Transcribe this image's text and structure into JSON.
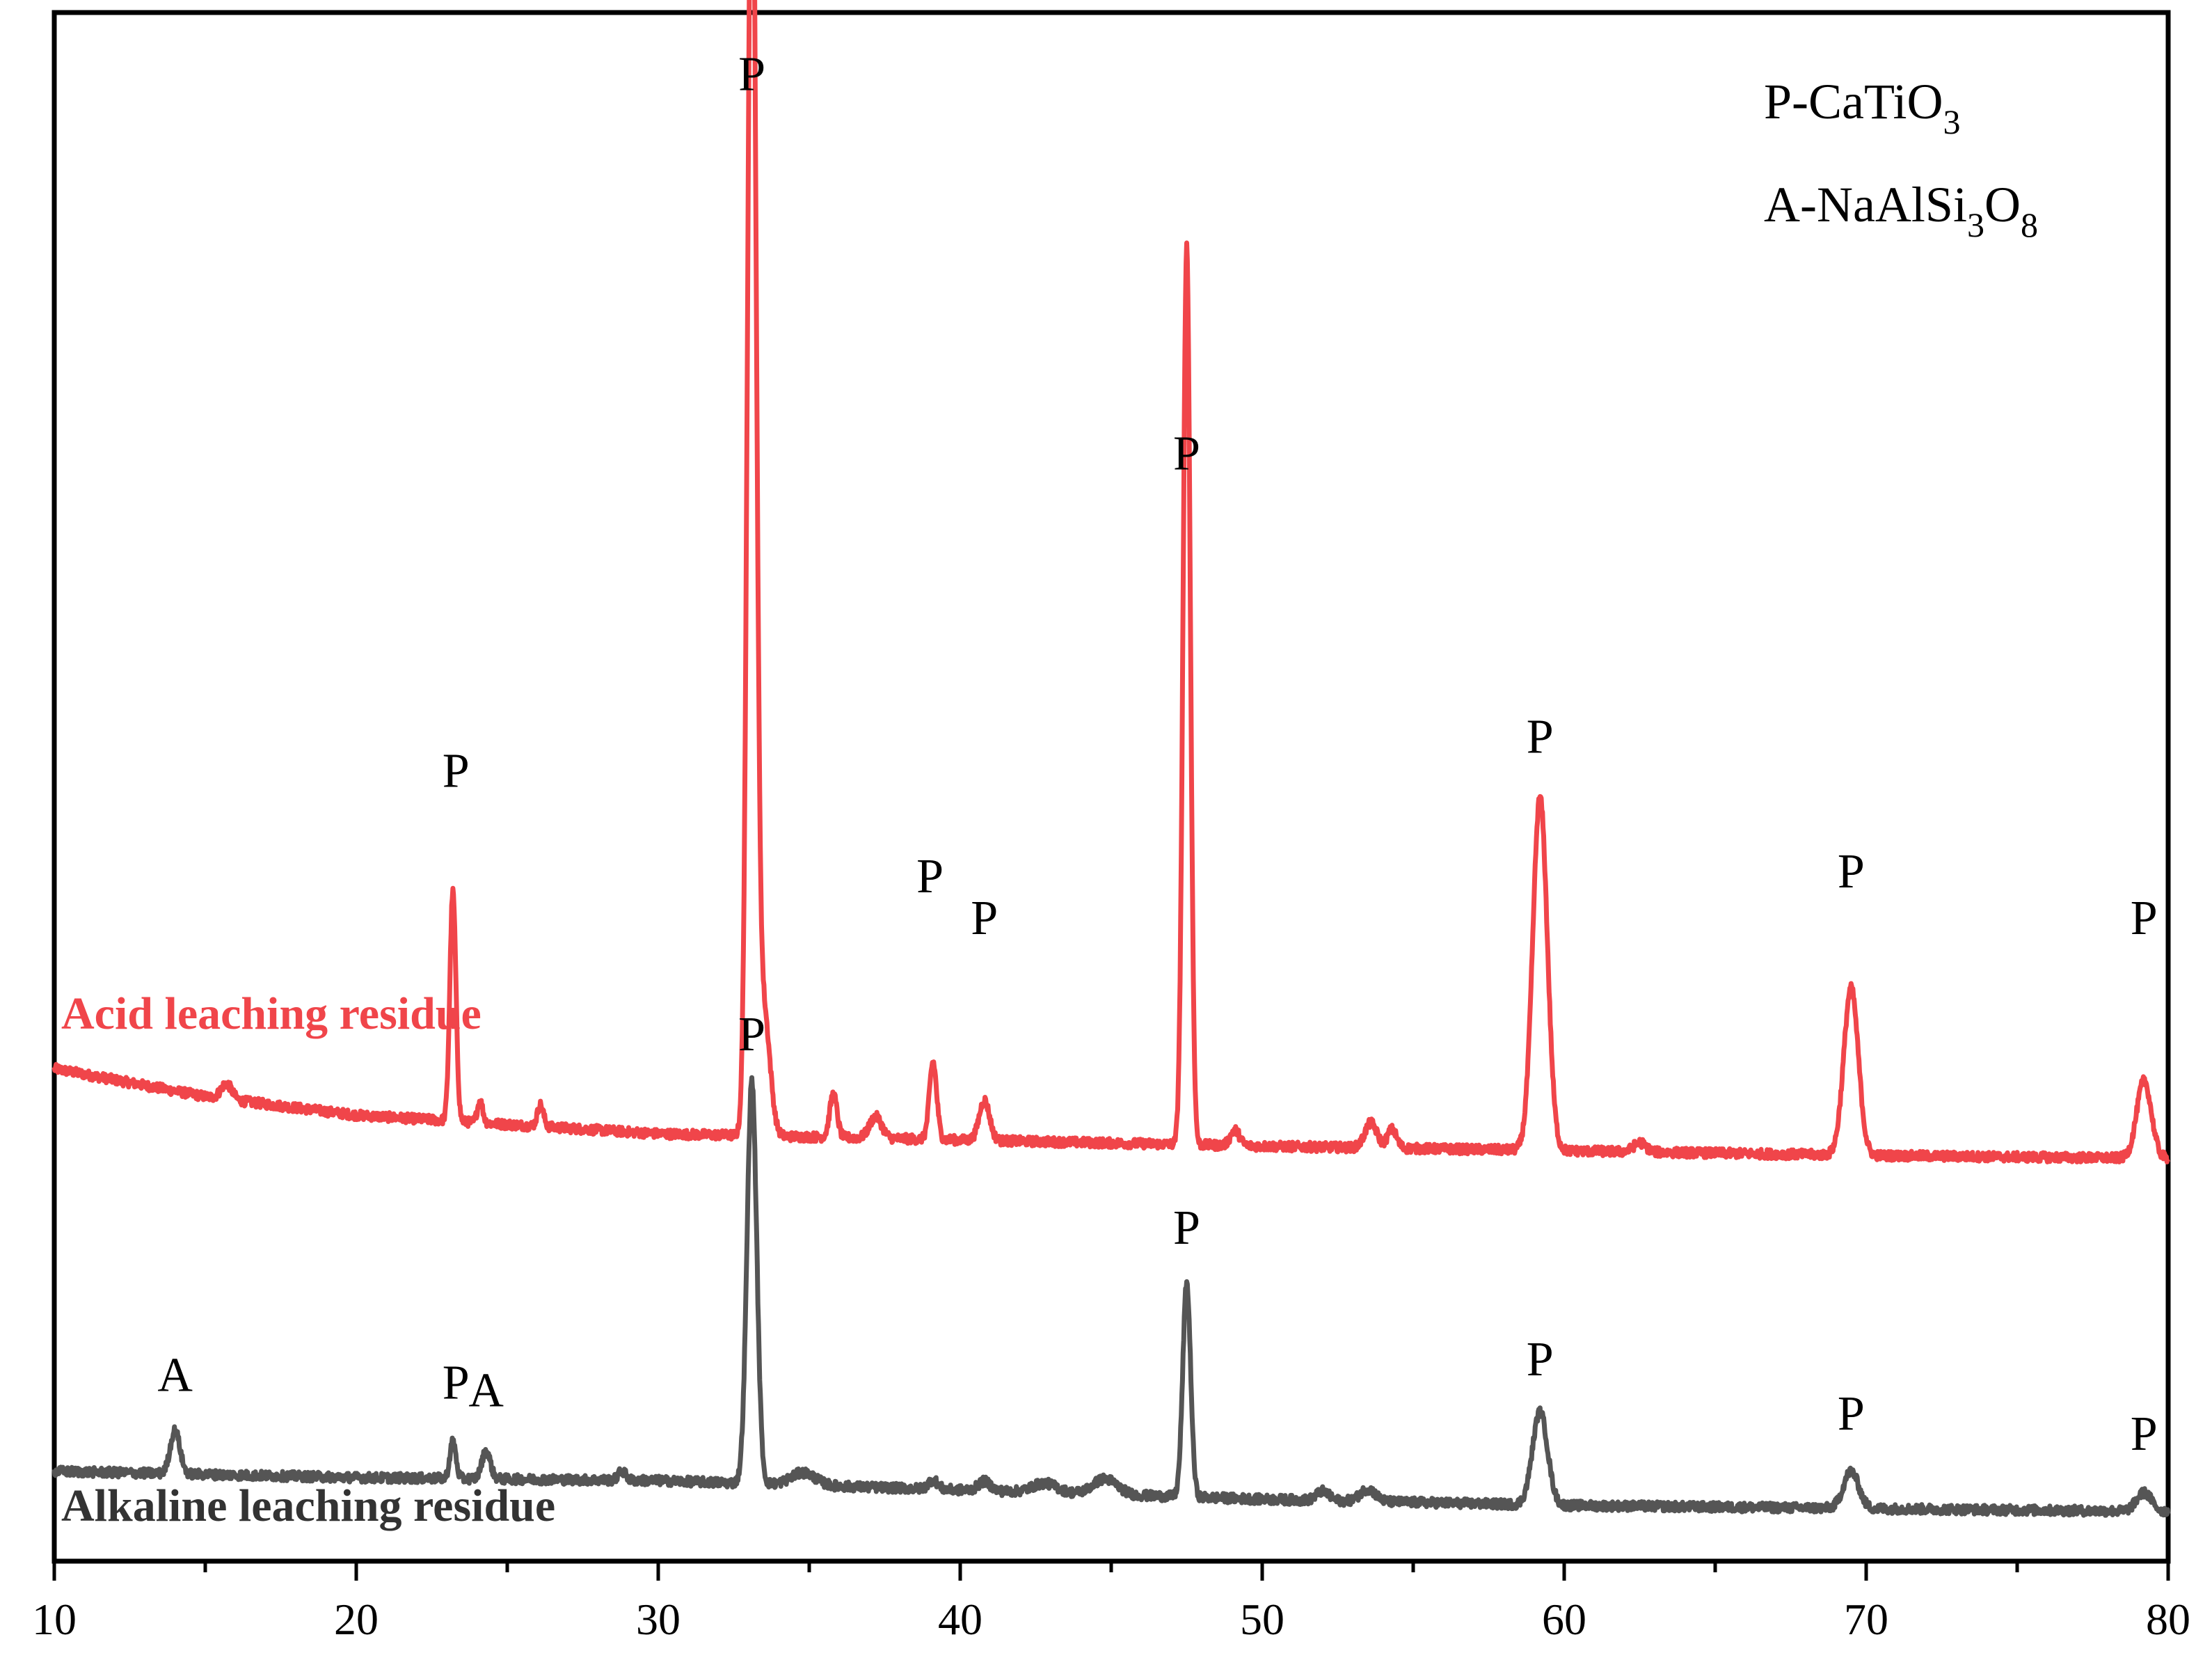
{
  "chart_data": {
    "type": "line",
    "title": "",
    "xlabel": "",
    "ylabel": "",
    "xlim": [
      10,
      80
    ],
    "x_ticks": [
      "10",
      "20",
      "30",
      "40",
      "50",
      "60",
      "70",
      "80"
    ],
    "grid": false,
    "legend": [
      {
        "prefix": "P-CaTiO",
        "sub": "3",
        "rest": ""
      },
      {
        "prefix": "A-NaAlSi",
        "sub": "3",
        "rest": "O",
        "sub2": "8"
      }
    ],
    "colors": {
      "acid": "#f0454a",
      "alkaline": "#555555",
      "axis": "#000000"
    },
    "series": [
      {
        "label": "Acid leaching residue",
        "baseline": [
          [
            10,
            0.318
          ],
          [
            15,
            0.3
          ],
          [
            20,
            0.288
          ],
          [
            25,
            0.282
          ],
          [
            30,
            0.276
          ],
          [
            40,
            0.272
          ],
          [
            50,
            0.268
          ],
          [
            60,
            0.265
          ],
          [
            70,
            0.262
          ],
          [
            80,
            0.26
          ]
        ],
        "peaks": [
          {
            "x": 15.7,
            "h": 0.01,
            "w": 0.18
          },
          {
            "x": 23.2,
            "h": 0.148,
            "w": 0.1
          },
          {
            "x": 24.1,
            "h": 0.014,
            "w": 0.09
          },
          {
            "x": 26.1,
            "h": 0.014,
            "w": 0.1
          },
          {
            "x": 33.1,
            "h": 0.888,
            "w": 0.14
          },
          {
            "x": 33.5,
            "h": 0.08,
            "w": 0.2
          },
          {
            "x": 35.8,
            "h": 0.028,
            "w": 0.12
          },
          {
            "x": 37.2,
            "h": 0.014,
            "w": 0.2
          },
          {
            "x": 39.1,
            "h": 0.05,
            "w": 0.12
          },
          {
            "x": 40.8,
            "h": 0.026,
            "w": 0.17
          },
          {
            "x": 47.5,
            "h": 0.58,
            "w": 0.12
          },
          {
            "x": 49.1,
            "h": 0.01,
            "w": 0.15
          },
          {
            "x": 53.6,
            "h": 0.016,
            "w": 0.2
          },
          {
            "x": 54.3,
            "h": 0.012,
            "w": 0.15
          },
          {
            "x": 59.2,
            "h": 0.228,
            "w": 0.24
          },
          {
            "x": 62.5,
            "h": 0.006,
            "w": 0.2
          },
          {
            "x": 69.5,
            "h": 0.108,
            "w": 0.24
          },
          {
            "x": 79.2,
            "h": 0.05,
            "w": 0.24
          }
        ],
        "peak_labels": [
          {
            "text": "P",
            "x": 33.1,
            "y": 0.95
          },
          {
            "text": "P",
            "x": 23.3,
            "y": 0.5
          },
          {
            "text": "P",
            "x": 47.5,
            "y": 0.705
          },
          {
            "text": "P",
            "x": 39.0,
            "y": 0.432
          },
          {
            "text": "P",
            "x": 40.8,
            "y": 0.405
          },
          {
            "text": "P",
            "x": 59.2,
            "y": 0.522
          },
          {
            "text": "P",
            "x": 69.5,
            "y": 0.435
          },
          {
            "text": "P",
            "x": 79.2,
            "y": 0.405
          }
        ]
      },
      {
        "label": "Alkaline leaching residue",
        "baseline": [
          [
            10,
            0.058
          ],
          [
            20,
            0.054
          ],
          [
            30,
            0.052
          ],
          [
            40,
            0.046
          ],
          [
            50,
            0.04
          ],
          [
            60,
            0.036
          ],
          [
            70,
            0.034
          ],
          [
            80,
            0.032
          ]
        ],
        "peaks": [
          {
            "x": 14.0,
            "h": 0.028,
            "w": 0.16
          },
          {
            "x": 23.2,
            "h": 0.024,
            "w": 0.1
          },
          {
            "x": 24.3,
            "h": 0.018,
            "w": 0.14
          },
          {
            "x": 28.8,
            "h": 0.006,
            "w": 0.12
          },
          {
            "x": 33.1,
            "h": 0.26,
            "w": 0.16
          },
          {
            "x": 34.8,
            "h": 0.008,
            "w": 0.4
          },
          {
            "x": 39.1,
            "h": 0.006,
            "w": 0.15
          },
          {
            "x": 40.8,
            "h": 0.006,
            "w": 0.2
          },
          {
            "x": 42.8,
            "h": 0.006,
            "w": 0.4
          },
          {
            "x": 44.8,
            "h": 0.01,
            "w": 0.4
          },
          {
            "x": 47.5,
            "h": 0.138,
            "w": 0.13
          },
          {
            "x": 52.0,
            "h": 0.006,
            "w": 0.2
          },
          {
            "x": 53.5,
            "h": 0.008,
            "w": 0.25
          },
          {
            "x": 59.2,
            "h": 0.06,
            "w": 0.25
          },
          {
            "x": 69.5,
            "h": 0.024,
            "w": 0.25
          },
          {
            "x": 79.2,
            "h": 0.012,
            "w": 0.25
          }
        ],
        "peak_labels": [
          {
            "text": "A",
            "x": 14.0,
            "y": 0.11
          },
          {
            "text": "P",
            "x": 23.3,
            "y": 0.105
          },
          {
            "text": "A",
            "x": 24.3,
            "y": 0.1
          },
          {
            "text": "P",
            "x": 33.1,
            "y": 0.33
          },
          {
            "text": "P",
            "x": 47.5,
            "y": 0.205
          },
          {
            "text": "P",
            "x": 59.2,
            "y": 0.12
          },
          {
            "text": "P",
            "x": 69.5,
            "y": 0.085
          },
          {
            "text": "P",
            "x": 79.2,
            "y": 0.072
          }
        ]
      }
    ]
  }
}
